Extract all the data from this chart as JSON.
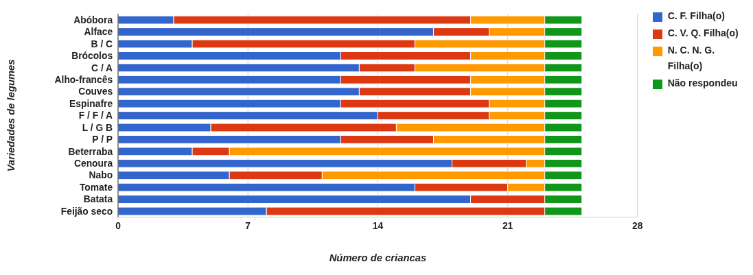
{
  "chart_data": {
    "type": "bar",
    "orientation": "horizontal",
    "stacked": true,
    "xlabel": "Número de criancas",
    "ylabel": "Variedades de legumes",
    "categories": [
      "Abóbora",
      "Alface",
      "B / C",
      "Brócolos",
      "C / A",
      "Alho-francês",
      "Couves",
      "Espinafre",
      "F / F / A",
      "L / G B",
      "P / P",
      "Beterraba",
      "Cenoura",
      "Nabo",
      "Tomate",
      "Batata",
      "Feijão seco"
    ],
    "series": [
      {
        "name": "C. F. Filha(o)",
        "color": "#3366cc",
        "values": [
          3,
          17,
          4,
          12,
          13,
          12,
          13,
          12,
          14,
          5,
          12,
          4,
          18,
          6,
          16,
          19,
          8
        ]
      },
      {
        "name": "C. V. Q. Filha(o)",
        "color": "#dc3912",
        "values": [
          16,
          3,
          12,
          7,
          3,
          7,
          6,
          8,
          6,
          10,
          5,
          2,
          4,
          5,
          5,
          4,
          15
        ]
      },
      {
        "name": "N. C. N. G. Filha(o)",
        "color": "#ff9900",
        "values": [
          4,
          3,
          7,
          4,
          7,
          4,
          4,
          3,
          3,
          8,
          6,
          17,
          1,
          12,
          2,
          0,
          0
        ]
      },
      {
        "name": "Não respondeu",
        "color": "#109618",
        "values": [
          2,
          2,
          2,
          2,
          2,
          2,
          2,
          2,
          2,
          2,
          2,
          2,
          2,
          2,
          2,
          2,
          2
        ]
      }
    ],
    "xlim": [
      0,
      28
    ],
    "xticks": [
      0,
      7,
      14,
      21,
      28
    ],
    "grid": "x",
    "legend": "right"
  }
}
